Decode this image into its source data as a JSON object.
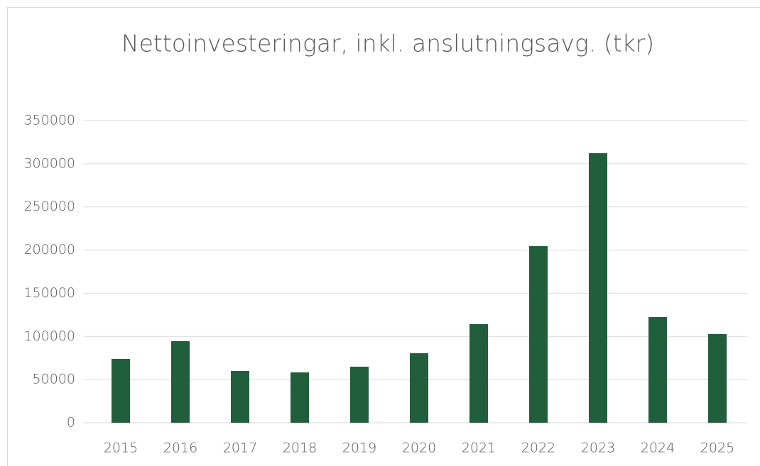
{
  "chart_data": {
    "type": "bar",
    "title": "Nettoinvesteringar, inkl. anslutningsavg. (tkr)",
    "categories": [
      "2015",
      "2016",
      "2017",
      "2018",
      "2019",
      "2020",
      "2021",
      "2022",
      "2023",
      "2024",
      "2025"
    ],
    "values": [
      74000,
      94500,
      60000,
      58300,
      64900,
      80500,
      114200,
      204600,
      312200,
      122400,
      102700
    ],
    "color": "#215e3b",
    "ylim": [
      0,
      350000
    ],
    "yticks": [
      0,
      50000,
      100000,
      150000,
      200000,
      250000,
      300000,
      350000
    ],
    "grid": true
  }
}
